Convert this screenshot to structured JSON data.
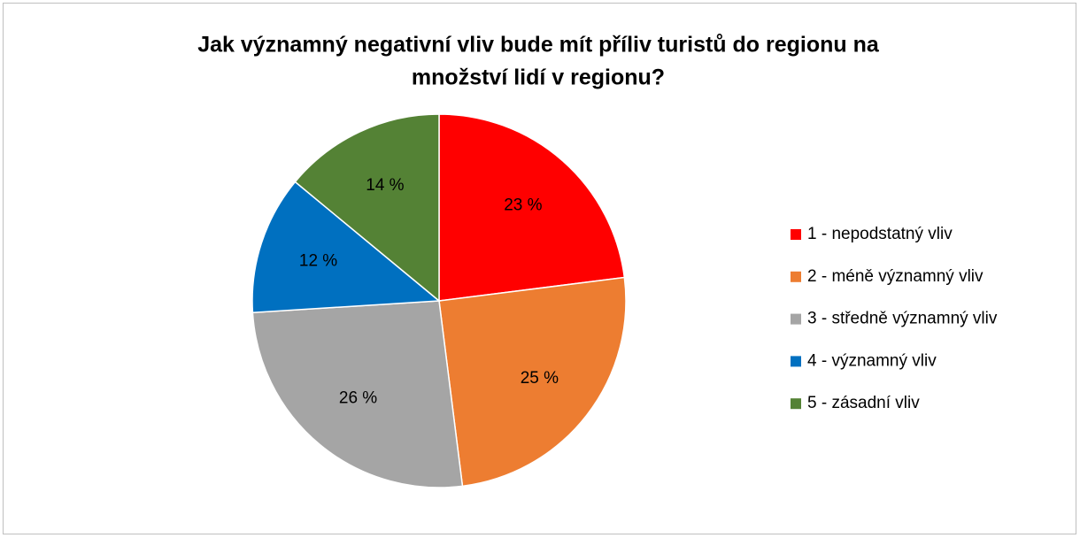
{
  "chart_data": {
    "type": "pie",
    "title": [
      "Jak významný negativní vliv bude mít příliv turistů do regionu na",
      "množství lidí v regionu?"
    ],
    "categories": [
      "1 - nepodstatný vliv",
      "2 - méně významný vliv",
      "3 - středně významný vliv",
      "4 - významný vliv",
      "5 - zásadní vliv"
    ],
    "values": [
      23,
      25,
      26,
      12,
      14
    ],
    "value_labels": [
      "23 %",
      "25 %",
      "26 %",
      "12 %",
      "14 %"
    ],
    "colors": [
      "#ff0000",
      "#ed7d31",
      "#a5a5a5",
      "#0070c0",
      "#548235"
    ],
    "legend": "right"
  }
}
